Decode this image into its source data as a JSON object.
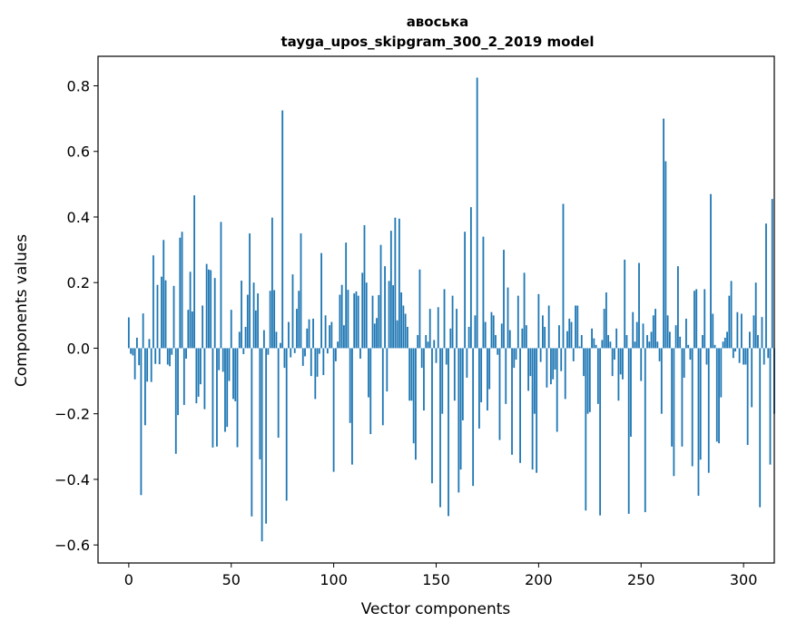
{
  "chart_data": {
    "type": "bar",
    "title": "авоська",
    "subtitle": "tayga_upos_skipgram_300_2_2019 model",
    "xlabel": "Vector components",
    "ylabel": "Components values",
    "xlim": [
      -15,
      315
    ],
    "ylim": [
      -0.655,
      0.89
    ],
    "xticks": [
      0,
      50,
      100,
      150,
      200,
      250,
      300
    ],
    "xtick_labels": [
      "0",
      "50",
      "100",
      "150",
      "200",
      "250",
      "300"
    ],
    "yticks": [
      -0.6,
      -0.4,
      -0.2,
      0.0,
      0.2,
      0.4,
      0.6,
      0.8
    ],
    "ytick_labels": [
      "−0.6",
      "−0.4",
      "−0.2",
      "0.0",
      "0.2",
      "0.4",
      "0.6",
      "0.8"
    ],
    "grid": false,
    "bar_color": "#1f77b4",
    "values": [
      0.094,
      -0.017,
      -0.022,
      -0.095,
      0.032,
      -0.052,
      -0.448,
      0.106,
      -0.235,
      -0.102,
      0.028,
      -0.103,
      0.283,
      -0.048,
      0.193,
      -0.049,
      0.218,
      0.33,
      0.207,
      -0.05,
      -0.055,
      -0.02,
      0.19,
      -0.322,
      -0.204,
      0.337,
      0.355,
      -0.173,
      -0.032,
      0.117,
      0.233,
      0.112,
      0.466,
      -0.168,
      -0.148,
      -0.11,
      0.13,
      -0.186,
      0.257,
      0.24,
      0.238,
      -0.303,
      0.214,
      -0.3,
      -0.067,
      0.385,
      -0.072,
      -0.255,
      -0.24,
      -0.1,
      0.117,
      -0.155,
      -0.162,
      -0.302,
      0.05,
      0.206,
      -0.018,
      0.065,
      0.163,
      0.35,
      -0.513,
      0.2,
      0.115,
      0.167,
      -0.339,
      -0.589,
      0.055,
      -0.535,
      -0.02,
      0.175,
      0.398,
      0.177,
      0.05,
      -0.273,
      0.016,
      0.725,
      -0.06,
      -0.465,
      0.08,
      -0.028,
      0.225,
      -0.015,
      0.12,
      0.175,
      0.35,
      -0.054,
      -0.025,
      0.06,
      0.088,
      -0.085,
      0.09,
      -0.155,
      -0.087,
      -0.017,
      0.29,
      -0.082,
      0.1,
      -0.016,
      0.07,
      0.08,
      -0.377,
      -0.04,
      0.02,
      0.163,
      0.193,
      0.07,
      0.322,
      0.178,
      -0.228,
      -0.355,
      0.167,
      0.173,
      0.16,
      -0.032,
      0.23,
      0.375,
      0.2,
      -0.15,
      -0.262,
      0.16,
      0.075,
      0.092,
      0.162,
      0.315,
      -0.235,
      0.25,
      -0.132,
      0.205,
      0.358,
      0.192,
      0.398,
      0.085,
      0.395,
      0.17,
      0.13,
      0.105,
      0.065,
      -0.16,
      -0.16,
      -0.29,
      -0.34,
      0.04,
      0.24,
      -0.06,
      -0.19,
      0.04,
      0.02,
      0.12,
      -0.412,
      0.025,
      -0.045,
      0.125,
      -0.485,
      -0.2,
      0.18,
      -0.05,
      -0.512,
      0.06,
      0.16,
      -0.16,
      0.12,
      -0.44,
      -0.37,
      -0.22,
      0.355,
      -0.09,
      0.065,
      0.43,
      -0.42,
      0.1,
      0.825,
      -0.245,
      -0.165,
      0.34,
      0.08,
      -0.19,
      -0.125,
      0.11,
      0.1,
      0.04,
      -0.02,
      -0.28,
      0.075,
      0.3,
      -0.17,
      0.185,
      0.055,
      -0.325,
      -0.06,
      -0.035,
      0.16,
      -0.35,
      0.06,
      0.23,
      0.07,
      -0.13,
      -0.085,
      -0.37,
      -0.2,
      -0.38,
      0.165,
      -0.042,
      0.1,
      0.065,
      -0.12,
      0.13,
      -0.11,
      -0.095,
      -0.065,
      -0.255,
      0.07,
      -0.07,
      0.44,
      -0.155,
      0.052,
      0.09,
      0.08,
      -0.04,
      0.13,
      0.13,
      0.005,
      0.04,
      -0.085,
      -0.495,
      -0.2,
      -0.195,
      0.06,
      0.03,
      0.01,
      -0.17,
      -0.51,
      0.025,
      0.12,
      0.17,
      0.04,
      0.02,
      -0.085,
      -0.035,
      0.06,
      -0.16,
      -0.08,
      -0.095,
      0.27,
      0.04,
      -0.505,
      -0.27,
      0.11,
      0.02,
      0.08,
      0.26,
      -0.1,
      0.075,
      -0.5,
      0.04,
      0.02,
      0.05,
      0.1,
      0.12,
      0.02,
      -0.04,
      -0.2,
      0.7,
      0.57,
      0.1,
      0.05,
      -0.3,
      -0.39,
      0.07,
      0.25,
      0.035,
      -0.3,
      -0.09,
      0.09,
      0.01,
      -0.035,
      -0.36,
      0.175,
      0.18,
      -0.45,
      -0.34,
      0.04,
      0.18,
      -0.05,
      -0.38,
      0.47,
      0.105,
      0.01,
      -0.285,
      -0.29,
      -0.15,
      0.02,
      0.032,
      0.05,
      0.16,
      0.205,
      -0.03,
      -0.01,
      0.11,
      -0.045,
      0.105,
      -0.05,
      -0.05,
      -0.295,
      0.05,
      -0.18,
      0.1,
      0.2,
      0.04,
      -0.485,
      0.095,
      -0.05,
      0.38,
      -0.03,
      -0.355,
      0.455,
      -0.2
    ]
  }
}
